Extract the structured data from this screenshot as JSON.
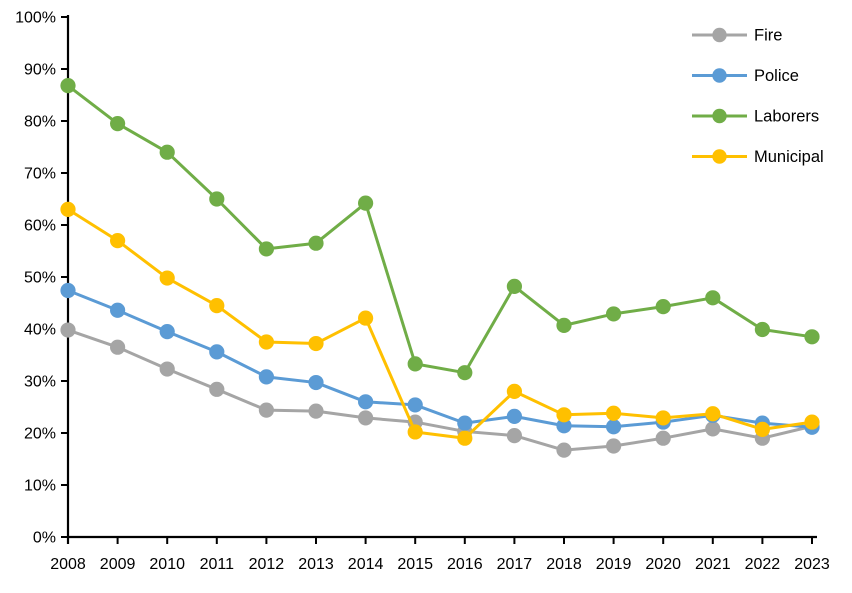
{
  "chart_data": {
    "type": "line",
    "title": "",
    "xlabel": "",
    "ylabel": "",
    "x": [
      2008,
      2009,
      2010,
      2011,
      2012,
      2013,
      2014,
      2015,
      2016,
      2017,
      2018,
      2019,
      2020,
      2021,
      2022,
      2023
    ],
    "series": [
      {
        "name": "Fire",
        "color": "#A5A5A5",
        "values": [
          39.8,
          36.5,
          32.3,
          28.4,
          24.4,
          24.2,
          22.9,
          22.1,
          20.3,
          19.5,
          16.7,
          17.5,
          19.0,
          20.8,
          19.0,
          21.3
        ]
      },
      {
        "name": "Police",
        "color": "#5B9BD5",
        "values": [
          47.4,
          43.6,
          39.5,
          35.6,
          30.8,
          29.7,
          26.0,
          25.4,
          21.9,
          23.2,
          21.4,
          21.2,
          22.1,
          23.4,
          21.9,
          21.1
        ]
      },
      {
        "name": "Laborers",
        "color": "#70AD47",
        "values": [
          86.8,
          79.5,
          74.0,
          65.0,
          55.4,
          56.5,
          64.2,
          33.3,
          31.6,
          48.2,
          40.7,
          42.9,
          44.3,
          46.0,
          39.9,
          38.5
        ]
      },
      {
        "name": "Municipal",
        "color": "#FFC000",
        "values": [
          63.0,
          57.0,
          49.8,
          44.5,
          37.5,
          37.2,
          42.1,
          20.2,
          19.0,
          28.0,
          23.5,
          23.8,
          22.9,
          23.7,
          20.7,
          22.1
        ]
      }
    ],
    "ylim": [
      0,
      100
    ],
    "yticks": [
      0,
      10,
      20,
      30,
      40,
      50,
      60,
      70,
      80,
      90,
      100
    ],
    "ytick_suffix": "%",
    "grid": false,
    "legend_position": "top-right",
    "axis_color": "#000000",
    "background": "#FFFFFF"
  }
}
